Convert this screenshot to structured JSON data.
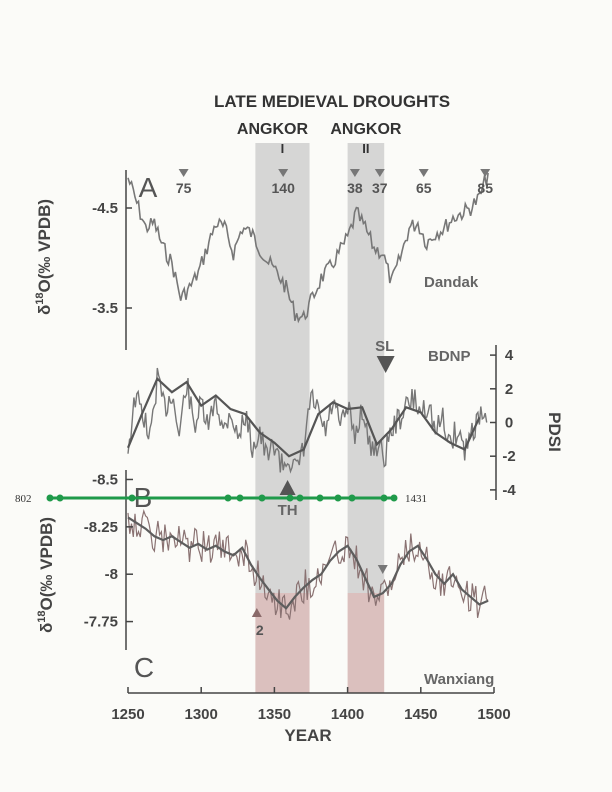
{
  "chart_data": {
    "type": "line",
    "title": "LATE MEDIEVAL DROUGHTS",
    "xlabel": "YEAR",
    "xlim": [
      1250,
      1500
    ],
    "x_ticks": [
      "1250",
      "1300",
      "1350",
      "1400",
      "1450",
      "1500"
    ],
    "drought_bands": [
      {
        "label": "ANGKOR",
        "roman": "I",
        "start": 1337,
        "end": 1374
      },
      {
        "label": "ANGKOR",
        "roman": "II",
        "start": 1400,
        "end": 1425
      }
    ],
    "panels": [
      {
        "letter": "A",
        "series_name": "Dandak",
        "ylabel_parts": [
          "δ",
          "18",
          "O(‰ VPDB)"
        ],
        "ylim": [
          -4.9,
          -3.1
        ],
        "y_ticks": [
          "-4.5",
          "-3.5"
        ],
        "y_tick_values": [
          -4.5,
          -3.5
        ],
        "markers": [
          {
            "x": 1288,
            "label": "75"
          },
          {
            "x": 1356,
            "label": "140"
          },
          {
            "x": 1405,
            "label": "38"
          },
          {
            "x": 1422,
            "label": "37"
          },
          {
            "x": 1452,
            "label": "65"
          },
          {
            "x": 1494,
            "label": "85"
          }
        ],
        "points": [
          [
            1250,
            -4.8
          ],
          [
            1256,
            -4.55
          ],
          [
            1262,
            -4.3
          ],
          [
            1268,
            -4.35
          ],
          [
            1274,
            -4.1
          ],
          [
            1280,
            -3.95
          ],
          [
            1286,
            -3.6
          ],
          [
            1292,
            -3.7
          ],
          [
            1298,
            -3.85
          ],
          [
            1304,
            -4.1
          ],
          [
            1310,
            -4.35
          ],
          [
            1316,
            -4.3
          ],
          [
            1322,
            -4.05
          ],
          [
            1328,
            -4.3
          ],
          [
            1334,
            -4.25
          ],
          [
            1340,
            -4.1
          ],
          [
            1346,
            -3.95
          ],
          [
            1352,
            -3.85
          ],
          [
            1358,
            -3.7
          ],
          [
            1364,
            -3.45
          ],
          [
            1370,
            -3.4
          ],
          [
            1376,
            -3.6
          ],
          [
            1382,
            -3.8
          ],
          [
            1388,
            -3.9
          ],
          [
            1394,
            -4.05
          ],
          [
            1400,
            -4.2
          ],
          [
            1406,
            -4.45
          ],
          [
            1412,
            -4.3
          ],
          [
            1418,
            -4.1
          ],
          [
            1424,
            -4.05
          ],
          [
            1430,
            -3.75
          ],
          [
            1436,
            -4.0
          ],
          [
            1442,
            -4.3
          ],
          [
            1448,
            -4.35
          ],
          [
            1454,
            -4.15
          ],
          [
            1460,
            -4.25
          ],
          [
            1466,
            -4.3
          ],
          [
            1472,
            -4.4
          ],
          [
            1478,
            -4.45
          ],
          [
            1484,
            -4.5
          ],
          [
            1490,
            -4.6
          ],
          [
            1496,
            -4.85
          ]
        ]
      },
      {
        "series_name": "BDNP",
        "ylabel": "PDSI",
        "ylim": [
          -4.6,
          4.6
        ],
        "y_ticks": [
          "4",
          "2",
          "0",
          "-2",
          "-4"
        ],
        "y_tick_values": [
          4,
          2,
          0,
          -2,
          -4
        ],
        "markers": [
          {
            "x": 1426,
            "label": "SL",
            "direction": "down"
          },
          {
            "x": 1359,
            "label": "TH",
            "direction": "up"
          }
        ],
        "points": [
          [
            1250,
            -1.5
          ],
          [
            1255,
            1.5
          ],
          [
            1260,
            0.6
          ],
          [
            1265,
            -1.0
          ],
          [
            1270,
            2.6
          ],
          [
            1275,
            0.8
          ],
          [
            1280,
            1.8
          ],
          [
            1285,
            -0.8
          ],
          [
            1290,
            2.4
          ],
          [
            1295,
            -0.2
          ],
          [
            1300,
            1.0
          ],
          [
            1305,
            -0.4
          ],
          [
            1310,
            1.6
          ],
          [
            1315,
            -0.6
          ],
          [
            1320,
            0.8
          ],
          [
            1325,
            -1.0
          ],
          [
            1330,
            0.5
          ],
          [
            1335,
            -1.4
          ],
          [
            1340,
            -0.6
          ],
          [
            1345,
            -2.2
          ],
          [
            1350,
            -1.2
          ],
          [
            1355,
            -2.6
          ],
          [
            1360,
            -2.0
          ],
          [
            1365,
            -3.0
          ],
          [
            1370,
            -1.6
          ],
          [
            1375,
            1.5
          ],
          [
            1380,
            0.5
          ],
          [
            1385,
            -0.6
          ],
          [
            1390,
            1.2
          ],
          [
            1395,
            -0.3
          ],
          [
            1400,
            0.8
          ],
          [
            1405,
            -0.8
          ],
          [
            1410,
            0.9
          ],
          [
            1415,
            -1.5
          ],
          [
            1420,
            -1.3
          ],
          [
            1425,
            -2.1
          ],
          [
            1430,
            -0.4
          ],
          [
            1435,
            0.2
          ],
          [
            1440,
            0.9
          ],
          [
            1445,
            1.4
          ],
          [
            1450,
            0.6
          ],
          [
            1455,
            1.2
          ],
          [
            1460,
            -0.6
          ],
          [
            1465,
            0.2
          ],
          [
            1470,
            -1.2
          ],
          [
            1475,
            -0.4
          ],
          [
            1480,
            -1.6
          ],
          [
            1485,
            -0.4
          ],
          [
            1490,
            0.3
          ],
          [
            1495,
            0.0
          ]
        ]
      },
      {
        "letter": "B",
        "series_name": "",
        "ylabel_parts": [
          "δ",
          "18",
          "O(‰ VPDB)"
        ],
        "ylim": [
          -8.55,
          -7.6
        ],
        "y_ticks": [
          "-8.5",
          "-8.25",
          "-8",
          "-7.75"
        ],
        "y_tick_values": [
          -8.5,
          -8.25,
          -8.0,
          -7.75
        ],
        "markers": [
          {
            "x": 1424,
            "label": ""
          },
          {
            "x": 1338,
            "label": "2",
            "direction": "up"
          }
        ],
        "points": [
          [
            1250,
            -8.3
          ],
          [
            1256,
            -8.27
          ],
          [
            1262,
            -8.24
          ],
          [
            1268,
            -8.2
          ],
          [
            1274,
            -8.18
          ],
          [
            1280,
            -8.2
          ],
          [
            1286,
            -8.17
          ],
          [
            1292,
            -8.14
          ],
          [
            1298,
            -8.16
          ],
          [
            1304,
            -8.13
          ],
          [
            1310,
            -8.15
          ],
          [
            1316,
            -8.12
          ],
          [
            1322,
            -8.1
          ],
          [
            1328,
            -8.14
          ],
          [
            1334,
            -8.05
          ],
          [
            1340,
            -7.98
          ],
          [
            1346,
            -7.92
          ],
          [
            1352,
            -7.86
          ],
          [
            1358,
            -7.82
          ],
          [
            1364,
            -7.88
          ],
          [
            1370,
            -7.93
          ],
          [
            1376,
            -7.97
          ],
          [
            1382,
            -8.0
          ],
          [
            1388,
            -8.07
          ],
          [
            1394,
            -8.12
          ],
          [
            1400,
            -8.15
          ],
          [
            1406,
            -8.08
          ],
          [
            1412,
            -7.98
          ],
          [
            1418,
            -7.88
          ],
          [
            1424,
            -7.9
          ],
          [
            1430,
            -7.95
          ],
          [
            1436,
            -8.05
          ],
          [
            1442,
            -8.12
          ],
          [
            1448,
            -8.15
          ],
          [
            1454,
            -8.08
          ],
          [
            1460,
            -8.0
          ],
          [
            1466,
            -7.95
          ],
          [
            1472,
            -8.0
          ],
          [
            1478,
            -7.92
          ],
          [
            1484,
            -7.88
          ],
          [
            1490,
            -7.84
          ],
          [
            1496,
            -7.86
          ]
        ]
      },
      {
        "letter": "C",
        "series_name": "Wanxiang"
      }
    ],
    "annotation": {
      "left": "802",
      "right": "1431"
    }
  }
}
